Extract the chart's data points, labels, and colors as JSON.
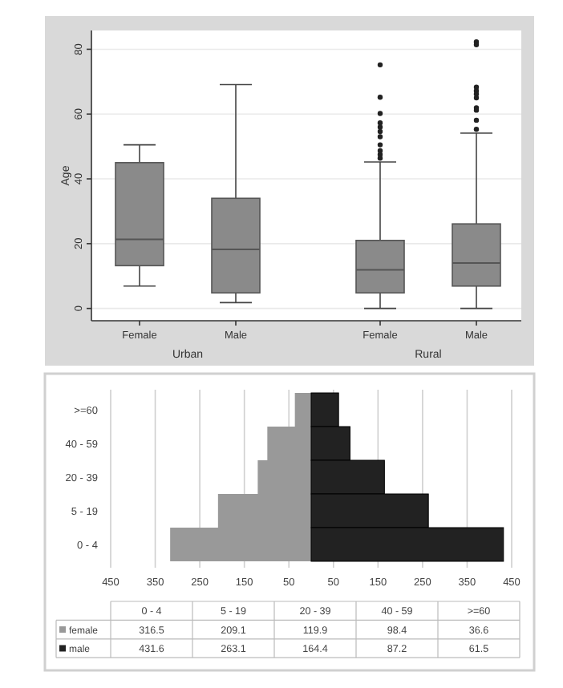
{
  "chart_data": [
    {
      "type": "box",
      "ylabel": "Age",
      "xlabel": "Urban",
      "categories": [
        "Female",
        "Male"
      ],
      "ylim": [
        -3.8,
        85.8
      ],
      "yticks": [
        0,
        20,
        40,
        60,
        80
      ],
      "grid": "y",
      "series": [
        {
          "color": "#8a8a8a",
          "boxes": [
            {
              "low": 6.9,
              "q1": 13.2,
              "median": 21.3,
              "q3": 45,
              "high": 50.5
            },
            {
              "low": 1.8,
              "q1": 4.8,
              "median": 18.2,
              "q3": 34,
              "high": 69.1
            }
          ]
        }
      ]
    },
    {
      "type": "box",
      "xlabel": "Rural",
      "categories": [
        "Female",
        "Male"
      ],
      "ylim": [
        -3.8,
        85.8
      ],
      "yticks": [
        0,
        20,
        40,
        60,
        80
      ],
      "grid": "y",
      "tick_labels": "x",
      "series": [
        {
          "color": "#8a8a8a",
          "boxes": [
            {
              "low": 0,
              "q1": 4.8,
              "median": 11.9,
              "q3": 21,
              "high": 45.2,
              "outliers": [
                75.2,
                65.2,
                60.2,
                57.3,
                56,
                54.6,
                53,
                50.5,
                48.7,
                47.5,
                46.4
              ]
            },
            {
              "low": 0,
              "q1": 6.9,
              "median": 14,
              "q3": 26.1,
              "high": 54.1,
              "outliers": [
                82.3,
                81.4,
                68.3,
                67.2,
                66.2,
                65,
                61.9,
                61.2,
                58.1,
                55.3
              ]
            }
          ]
        }
      ]
    },
    {
      "type": "bar",
      "orientation": "horizontal",
      "categories": [
        ">=60",
        "40 - 59",
        "20 - 39",
        "5 - 19",
        "0 - 4"
      ],
      "xlim": [
        450,
        0
      ],
      "xticks": [
        450,
        350,
        250,
        150,
        50
      ],
      "grid": "x",
      "legend": "bottom",
      "series": [
        {
          "name": "female",
          "color": "#999999",
          "values": [
            36.6,
            98.4,
            119.9,
            209.1,
            316.5
          ]
        }
      ]
    },
    {
      "type": "bar",
      "orientation": "horizontal",
      "categories": [
        ">=60",
        "40 - 59",
        "20 - 39",
        "5 - 19",
        "0 - 4"
      ],
      "xlim": [
        0,
        450
      ],
      "xticks": [
        50,
        150,
        250,
        350,
        450
      ],
      "grid": "x",
      "tick_labels": "x",
      "legend": "bottom",
      "series": [
        {
          "name": "male",
          "color": "#222222",
          "values": [
            61.5,
            87.2,
            164.4,
            263.1,
            431.6
          ]
        }
      ]
    },
    {
      "type": "other",
      "annotations": [
        "316.5",
        "209.1",
        "119.9",
        "98.4",
        "36.6",
        "431.6",
        "263.1",
        "164.4",
        "87.2",
        "61.5"
      ]
    }
  ]
}
